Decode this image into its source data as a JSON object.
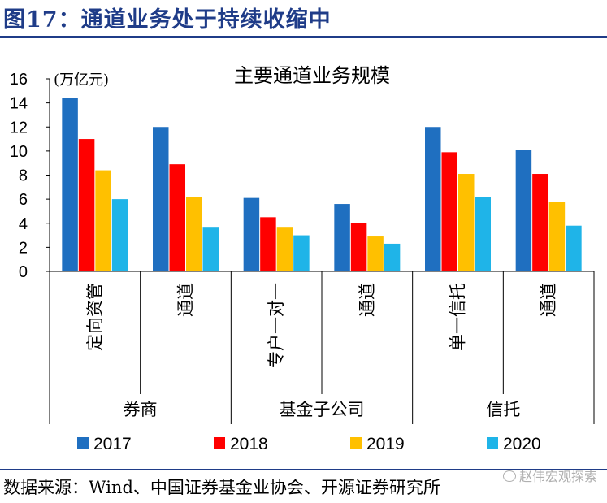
{
  "figure": {
    "title": "图17：通道业务处于持续收缩中",
    "source": "数据来源：Wind、中国证券基金业协会、开源证券研究所",
    "watermark": "赵伟宏观探索"
  },
  "colors": {
    "title": "#1f3c88",
    "series": [
      "#1f6fc0",
      "#ff0000",
      "#ffc000",
      "#1fb4e8"
    ]
  },
  "chart_data": {
    "type": "bar",
    "title": "主要通道业务规模",
    "ylabel": "(万亿元)",
    "ylim": [
      0,
      16
    ],
    "yticks": [
      0,
      2,
      4,
      6,
      8,
      10,
      12,
      14,
      16
    ],
    "grid": false,
    "legend_position": "bottom",
    "categories": [
      "定向资管",
      "通道",
      "专户一对一",
      "通道",
      "单一信托",
      "通道"
    ],
    "groups": [
      {
        "label": "券商",
        "categories": [
          "定向资管",
          "通道"
        ]
      },
      {
        "label": "基金子公司",
        "categories": [
          "专户一对一",
          "通道"
        ]
      },
      {
        "label": "信托",
        "categories": [
          "单一信托",
          "通道"
        ]
      }
    ],
    "series": [
      {
        "name": "2017",
        "values": [
          14.4,
          12.0,
          6.1,
          5.6,
          12.0,
          10.1
        ]
      },
      {
        "name": "2018",
        "values": [
          11.0,
          8.9,
          4.5,
          4.0,
          9.9,
          8.1
        ]
      },
      {
        "name": "2019",
        "values": [
          8.4,
          6.2,
          3.7,
          2.9,
          8.1,
          5.8
        ]
      },
      {
        "name": "2020",
        "values": [
          6.0,
          3.7,
          3.0,
          2.3,
          6.2,
          3.8
        ]
      }
    ]
  }
}
